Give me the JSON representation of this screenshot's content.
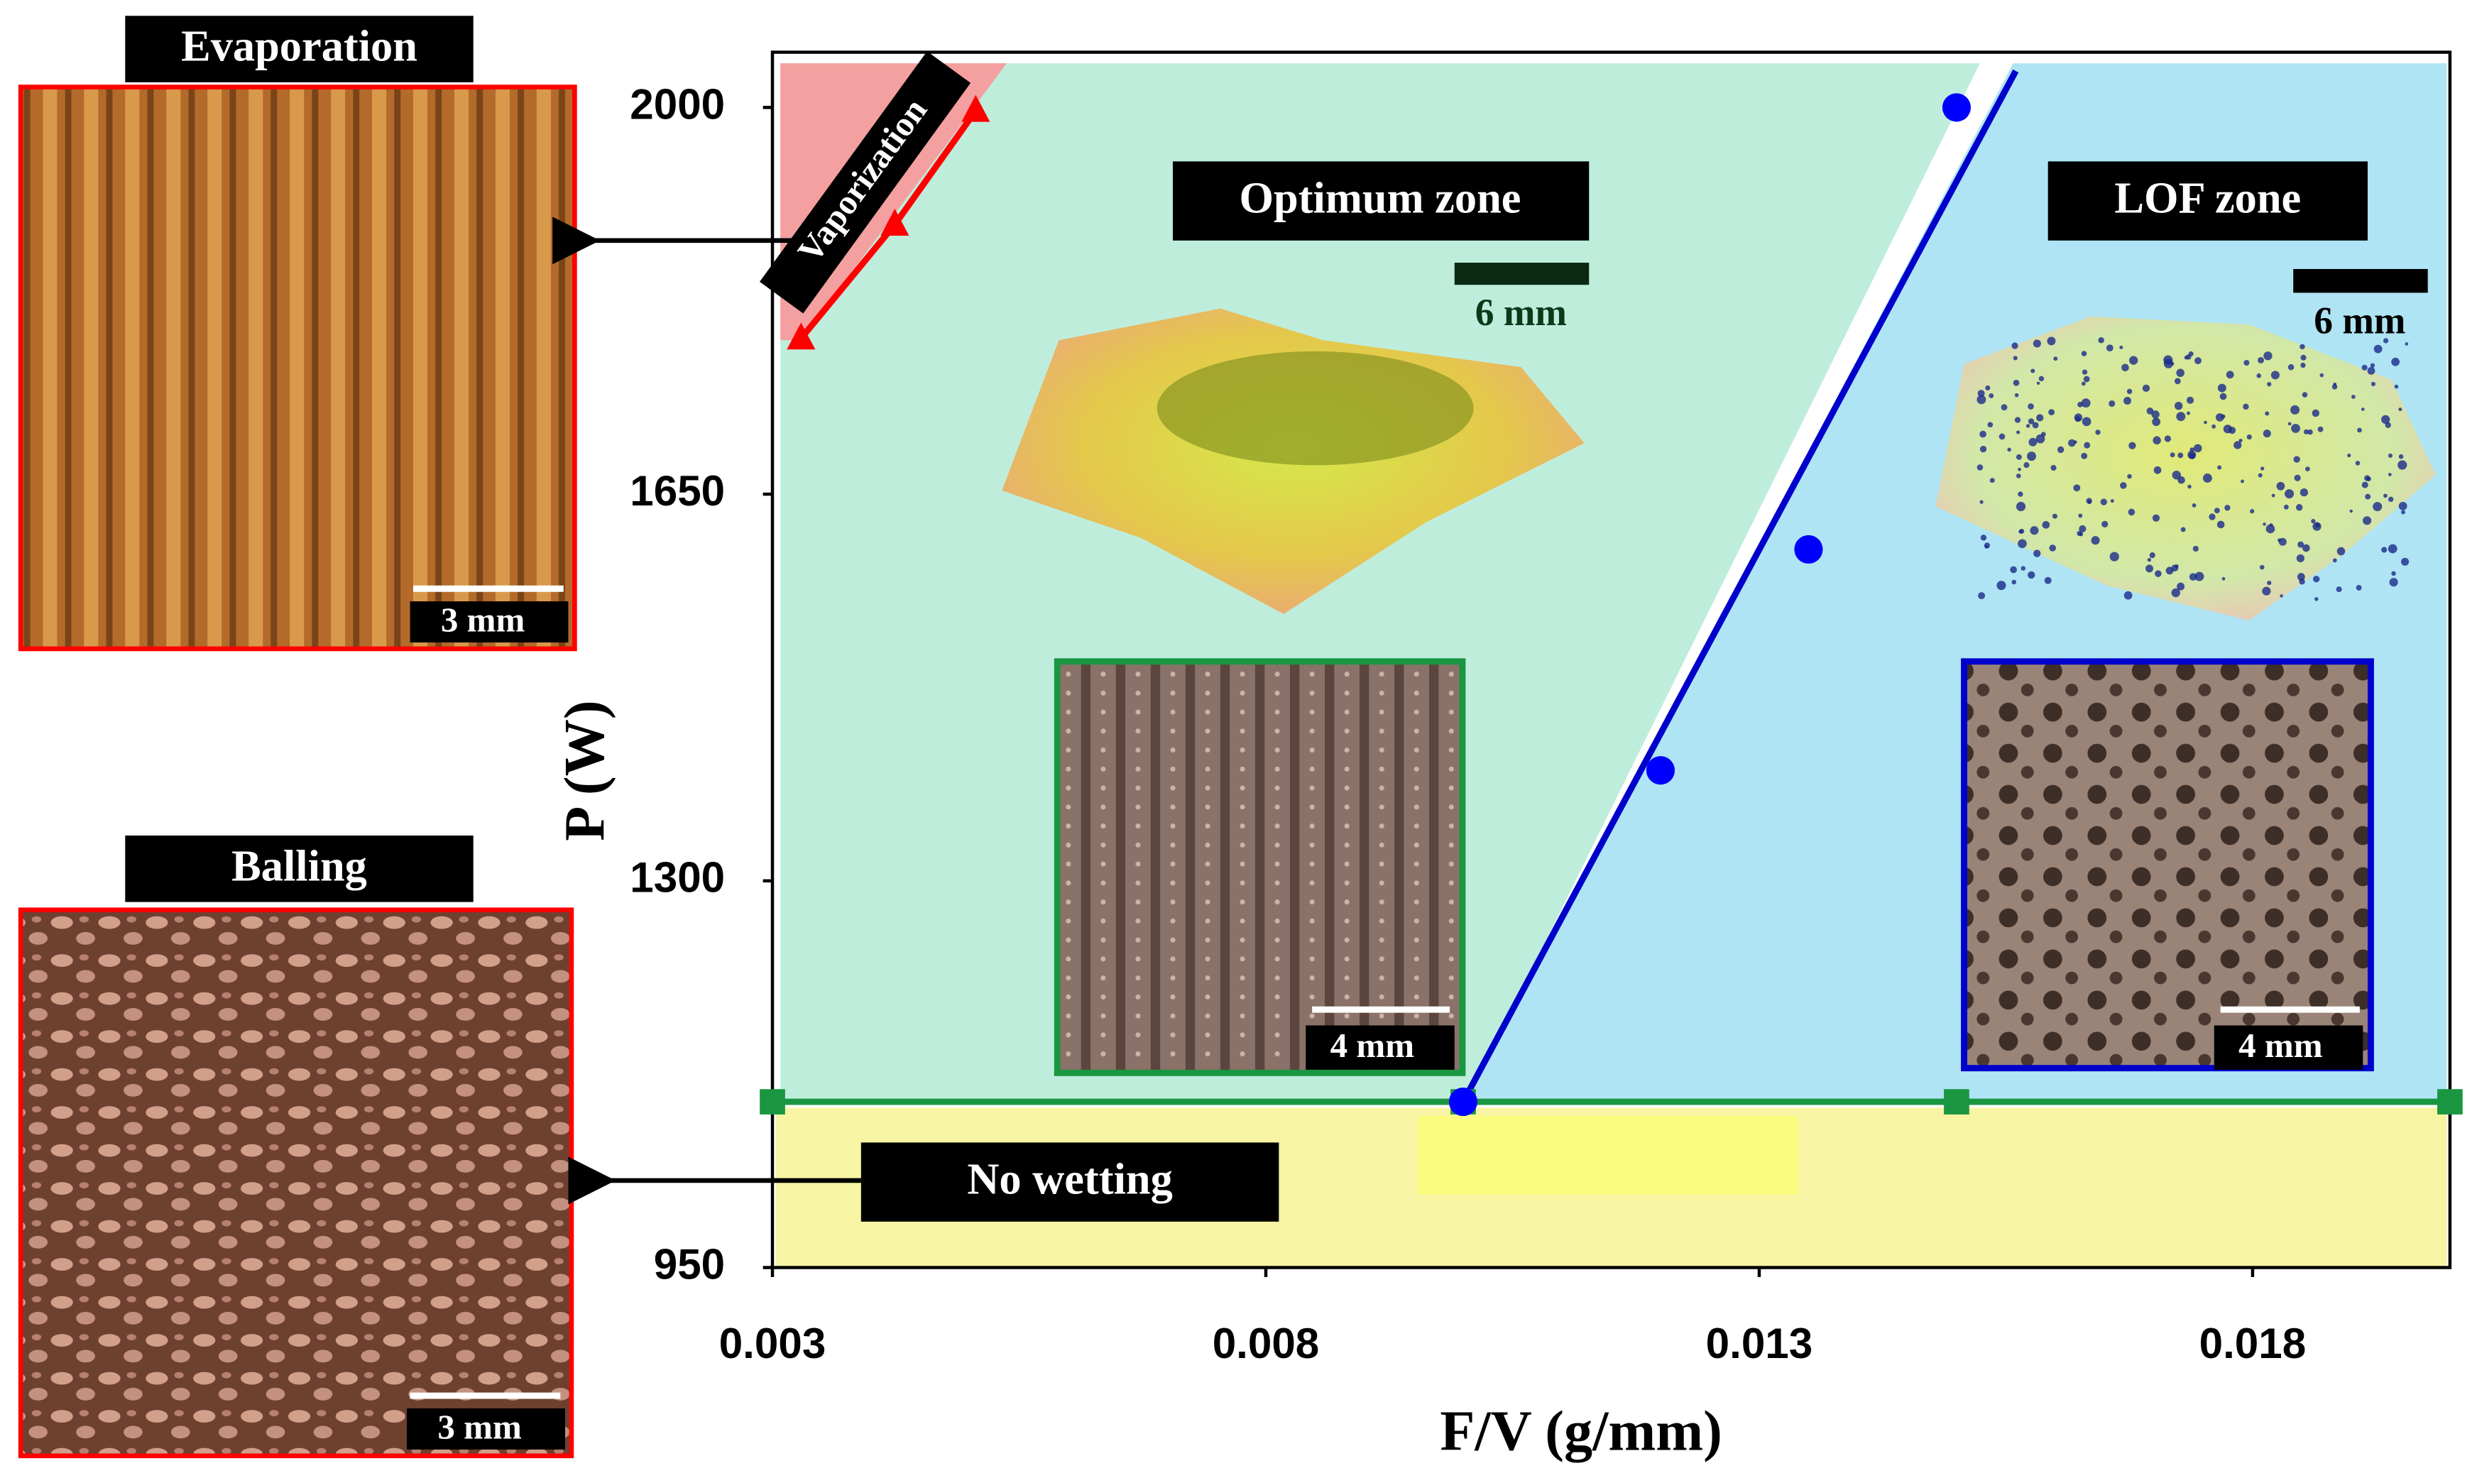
{
  "chart_data": {
    "type": "scatter",
    "x_label": "F/V (g/mm)",
    "y_label": "P (W)",
    "xlim": [
      0.003,
      0.02
    ],
    "ylim": [
      950,
      2050
    ],
    "xticks": [
      0.003,
      0.008,
      0.013,
      0.018
    ],
    "yticks": [
      950,
      1300,
      1650,
      2000
    ],
    "points": {
      "color": "#0000ff",
      "x": [
        0.01,
        0.012,
        0.0135,
        0.015
      ],
      "y": [
        1100,
        1400,
        1600,
        2000
      ]
    },
    "lines": [
      {
        "color": "#0000cc",
        "x": [
          0.01,
          0.0156
        ],
        "y": [
          1100,
          2033
        ]
      },
      {
        "color": "#1a9641",
        "marker": "square",
        "x": [
          0.003,
          0.01,
          0.015,
          0.02
        ],
        "y": [
          1100,
          1100,
          1100,
          1100
        ]
      },
      {
        "color": "#ff0000",
        "marker": "triangle",
        "x": [
          0.00329,
          0.00424,
          0.00506
        ],
        "y": [
          1791,
          1894,
          1997
        ]
      }
    ],
    "labels": {
      "optimum": "Optimum zone",
      "lof": "LOF zone",
      "no_wetting": "No wetting",
      "vaporization": "Vaporization"
    },
    "insets": {
      "evaporation": {
        "title": "Evaporation",
        "scale": "3 mm"
      },
      "balling": {
        "title": "Balling",
        "scale": "3 mm"
      },
      "optimum_ct": {
        "scale": "6 mm"
      },
      "optimum_photo": {
        "scale": "4 mm"
      },
      "lof_ct": {
        "scale": "6 mm"
      },
      "lof_photo": {
        "scale": "4 mm"
      }
    }
  }
}
